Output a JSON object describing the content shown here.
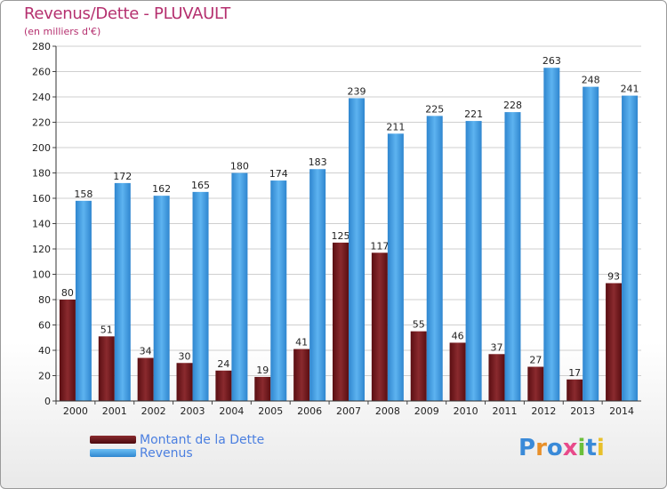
{
  "title": "Revenus/Dette - PLUVAULT",
  "subtitle": "(en milliers d'€)",
  "logo": "Proxiti",
  "colors": {
    "dette": "#7a1e22",
    "revenus": "#4aa3e6",
    "title": "#b5306f",
    "legend_text": "#4b7fe0"
  },
  "chart_data": {
    "type": "bar",
    "categories": [
      "2000",
      "2001",
      "2002",
      "2003",
      "2004",
      "2005",
      "2006",
      "2007",
      "2008",
      "2009",
      "2010",
      "2011",
      "2012",
      "2013",
      "2014"
    ],
    "series": [
      {
        "name": "Montant de la Dette",
        "values": [
          80,
          51,
          34,
          30,
          24,
          19,
          41,
          125,
          117,
          55,
          46,
          37,
          27,
          17,
          93
        ]
      },
      {
        "name": "Revenus",
        "values": [
          158,
          172,
          162,
          165,
          180,
          174,
          183,
          239,
          211,
          225,
          221,
          228,
          263,
          248,
          241
        ]
      }
    ],
    "ylim": [
      0,
      280
    ],
    "yticks": [
      0,
      20,
      40,
      60,
      80,
      100,
      120,
      140,
      160,
      180,
      200,
      220,
      240,
      260,
      280
    ],
    "grid": true,
    "legend": "bottom-left"
  }
}
